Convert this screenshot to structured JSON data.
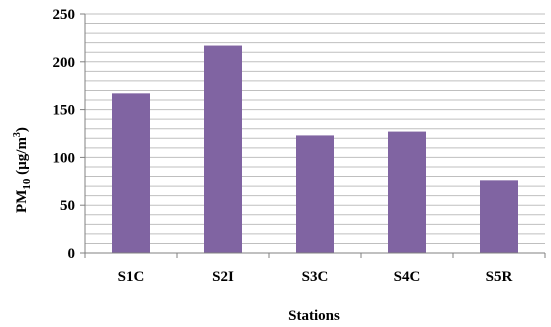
{
  "chart_data": {
    "type": "bar",
    "categories": [
      "S1C",
      "S2I",
      "S3C",
      "S4C",
      "S5R"
    ],
    "values": [
      167,
      217,
      123,
      127,
      76
    ],
    "xlabel": "Stations",
    "ylabel_main": "PM",
    "ylabel_sub": "10",
    "ylabel_unit_open": " (µg/m",
    "ylabel_sup": "3",
    "ylabel_unit_close": ")",
    "ylim": [
      0,
      250
    ],
    "yticks": [
      "0",
      "50",
      "100",
      "150",
      "200",
      "250"
    ],
    "grid": true,
    "bar_color": "#8064A2",
    "grid_color": "#BFBFBF"
  }
}
